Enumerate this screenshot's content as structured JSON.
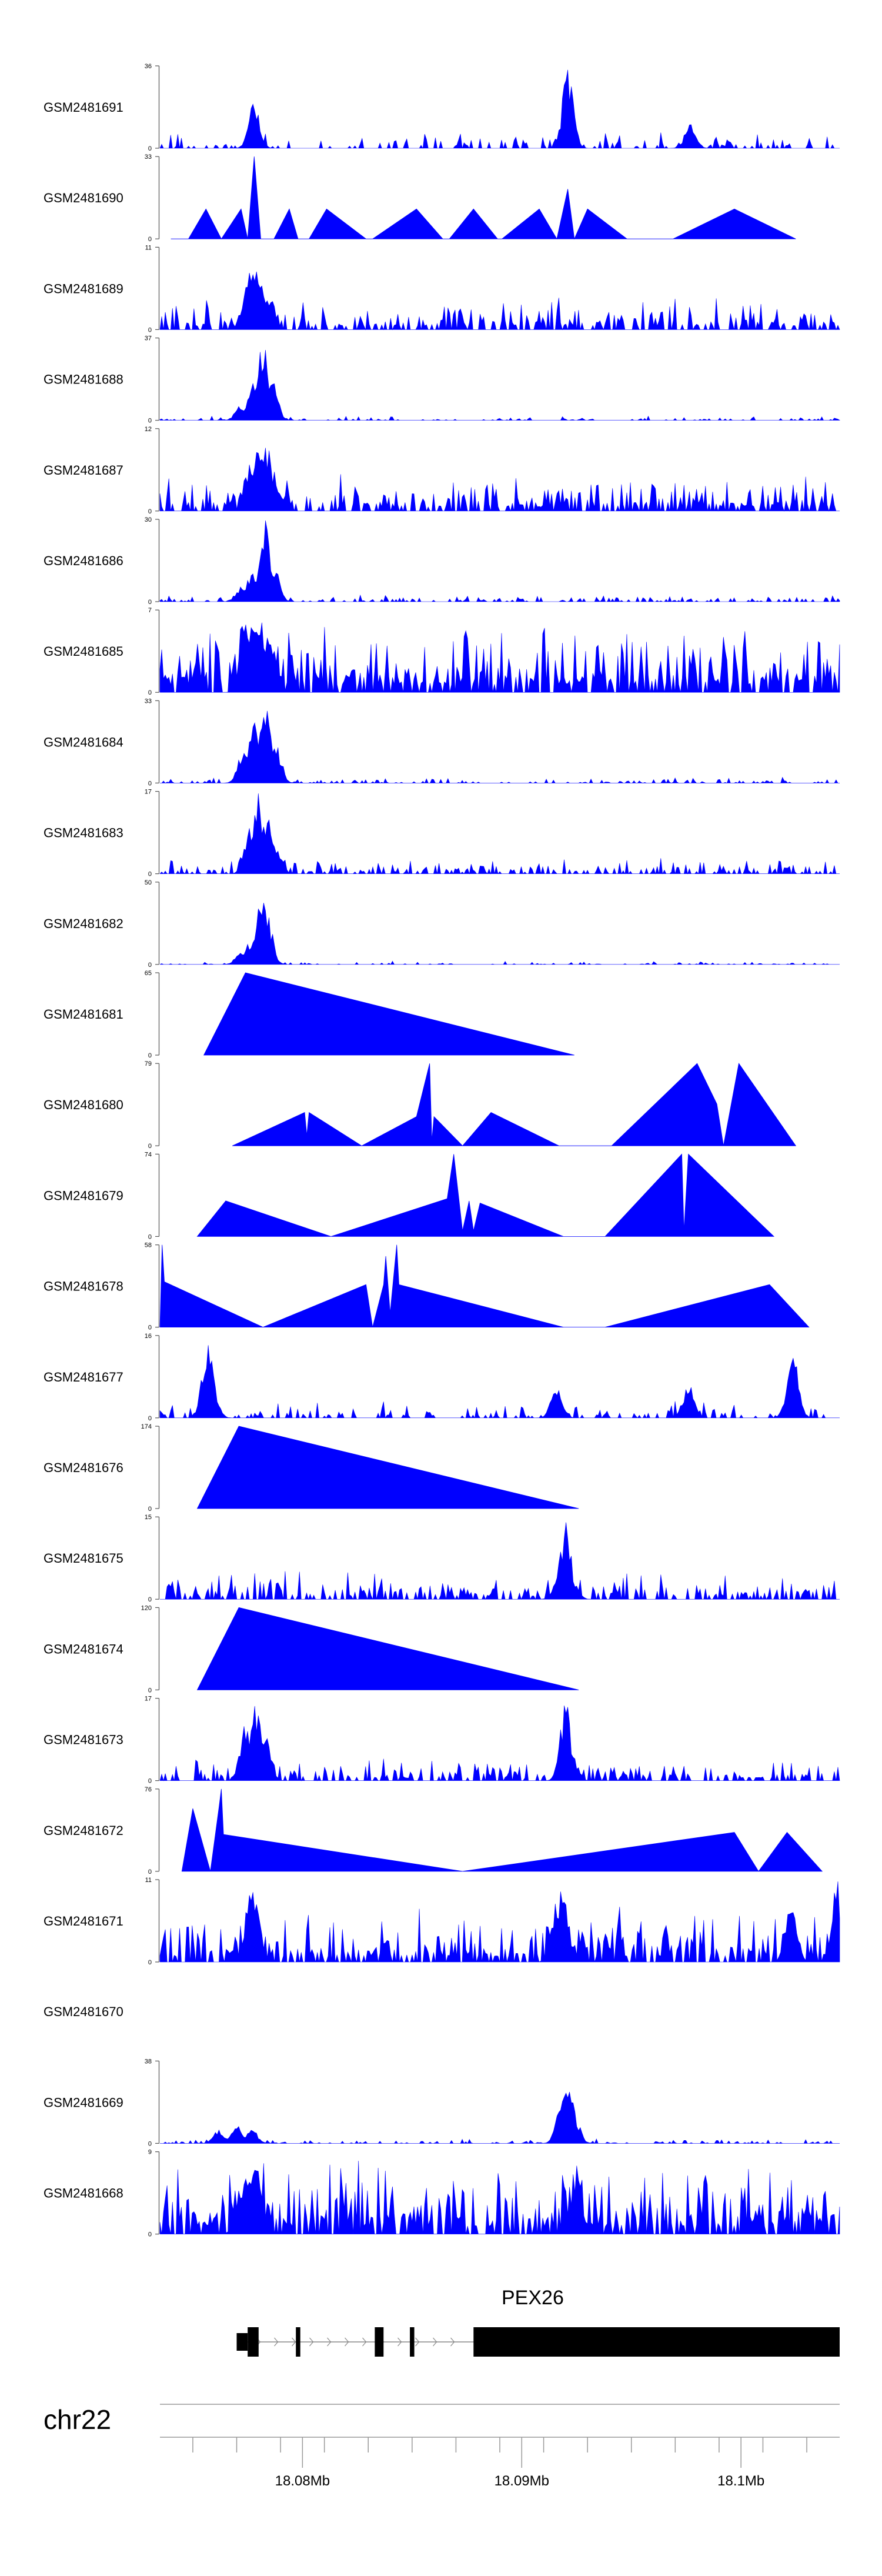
{
  "chart_data": {
    "type": "area",
    "title": "",
    "xlabel": "",
    "ylabel": "",
    "chromosome": "chr22",
    "xlim": [
      18.0735,
      18.1045
    ],
    "x_ticks": [
      18.075,
      18.077,
      18.079,
      18.081,
      18.083,
      18.085,
      18.087,
      18.089,
      18.091,
      18.093,
      18.095,
      18.097,
      18.099,
      18.101,
      18.103
    ],
    "x_tick_labels": [
      {
        "pos": 18.08,
        "label": "18.08Mb"
      },
      {
        "pos": 18.09,
        "label": "18.09Mb"
      },
      {
        "pos": 18.1,
        "label": "18.1Mb"
      }
    ],
    "gene": {
      "name": "PEX26",
      "label_pos": 18.0905,
      "start": 18.077,
      "end": 18.1045,
      "exons": [
        [
          18.077,
          18.0775
        ],
        [
          18.0775,
          18.078
        ],
        [
          18.0797,
          18.0799
        ],
        [
          18.0833,
          18.0837
        ],
        [
          18.0849,
          18.0851
        ],
        [
          18.0878,
          18.1045
        ]
      ]
    },
    "series": [
      {
        "name": "GSM2481691",
        "ymax": 36,
        "kind": "dense",
        "base": 4,
        "density": 0.35,
        "peaks": [
          [
            18.0778,
            22
          ],
          [
            18.0921,
            36
          ],
          [
            18.0977,
            12
          ]
        ]
      },
      {
        "name": "GSM2481690",
        "ymax": 33,
        "kind": "sparse",
        "baseline": 0,
        "points": [
          [
            18.074,
            0
          ],
          [
            18.0748,
            0
          ],
          [
            18.0756,
            12
          ],
          [
            18.0763,
            0
          ],
          [
            18.0772,
            12
          ],
          [
            18.0775,
            0
          ],
          [
            18.0778,
            33
          ],
          [
            18.0781,
            0
          ],
          [
            18.0787,
            0
          ],
          [
            18.0794,
            12
          ],
          [
            18.0798,
            0
          ],
          [
            18.0803,
            0
          ],
          [
            18.0811,
            12
          ],
          [
            18.0829,
            0
          ],
          [
            18.0832,
            0
          ],
          [
            18.0852,
            12
          ],
          [
            18.0864,
            0
          ],
          [
            18.0867,
            0
          ],
          [
            18.0878,
            12
          ],
          [
            18.0889,
            0
          ],
          [
            18.0891,
            0
          ],
          [
            18.0908,
            12
          ],
          [
            18.0916,
            0
          ],
          [
            18.0921,
            20
          ],
          [
            18.0924,
            0
          ],
          [
            18.093,
            12
          ],
          [
            18.0948,
            0
          ],
          [
            18.0969,
            0
          ],
          [
            18.0997,
            12
          ],
          [
            18.1025,
            0
          ]
        ]
      },
      {
        "name": "GSM2481689",
        "ymax": 11,
        "kind": "dense",
        "base": 2.2,
        "density": 0.55,
        "peaks": [
          [
            18.0775,
            8
          ],
          [
            18.0778,
            11
          ],
          [
            18.0782,
            7
          ],
          [
            18.0785,
            5
          ]
        ]
      },
      {
        "name": "GSM2481688",
        "ymax": 37,
        "kind": "dense",
        "base": 1.2,
        "density": 0.3,
        "peaks": [
          [
            18.0777,
            18
          ],
          [
            18.0782,
            37
          ],
          [
            18.0786,
            24
          ],
          [
            18.0772,
            8
          ]
        ]
      },
      {
        "name": "GSM2481687",
        "ymax": 12,
        "kind": "dense",
        "base": 2.8,
        "density": 0.6,
        "peaks": [
          [
            18.0776,
            8
          ],
          [
            18.078,
            12
          ],
          [
            18.0784,
            10
          ],
          [
            18.0787,
            6
          ]
        ]
      },
      {
        "name": "GSM2481686",
        "ymax": 30,
        "kind": "dense",
        "base": 1.5,
        "density": 0.35,
        "peaks": [
          [
            18.0777,
            12
          ],
          [
            18.0783,
            30
          ],
          [
            18.0787,
            14
          ],
          [
            18.0772,
            6
          ]
        ]
      },
      {
        "name": "GSM2481685",
        "ymax": 7,
        "kind": "dense",
        "base": 3.2,
        "density": 0.75,
        "peaks": [
          [
            18.0774,
            6
          ],
          [
            18.0778,
            7
          ],
          [
            18.0782,
            6.5
          ],
          [
            18.0786,
            5
          ]
        ]
      },
      {
        "name": "GSM2481684",
        "ymax": 33,
        "kind": "dense",
        "base": 1.2,
        "density": 0.3,
        "peaks": [
          [
            18.0773,
            14
          ],
          [
            18.0778,
            26
          ],
          [
            18.0783,
            33
          ],
          [
            18.0788,
            16
          ]
        ]
      },
      {
        "name": "GSM2481683",
        "ymax": 17,
        "kind": "dense",
        "base": 1.8,
        "density": 0.45,
        "peaks": [
          [
            18.0776,
            10
          ],
          [
            18.078,
            17
          ],
          [
            18.0784,
            12
          ],
          [
            18.0788,
            6
          ]
        ]
      },
      {
        "name": "GSM2481682",
        "ymax": 50,
        "kind": "dense",
        "base": 1,
        "density": 0.25,
        "peaks": [
          [
            18.0776,
            14
          ],
          [
            18.0781,
            50
          ],
          [
            18.0784,
            30
          ],
          [
            18.0772,
            8
          ]
        ]
      },
      {
        "name": "GSM2481681",
        "ymax": 65,
        "kind": "sparse",
        "baseline": 0,
        "points": [
          [
            18.0755,
            0
          ],
          [
            18.0774,
            65
          ],
          [
            18.0924,
            0
          ]
        ]
      },
      {
        "name": "GSM2481680",
        "ymax": 79,
        "kind": "sparse",
        "baseline": 0,
        "points": [
          [
            18.0768,
            0
          ],
          [
            18.0801,
            32
          ],
          [
            18.0802,
            10
          ],
          [
            18.0803,
            32
          ],
          [
            18.0827,
            0
          ],
          [
            18.0852,
            28
          ],
          [
            18.0858,
            79
          ],
          [
            18.0859,
            5
          ],
          [
            18.086,
            28
          ],
          [
            18.0873,
            0
          ],
          [
            18.0886,
            32
          ],
          [
            18.0917,
            0
          ],
          [
            18.0941,
            0
          ],
          [
            18.098,
            79
          ],
          [
            18.0989,
            40
          ],
          [
            18.0992,
            0
          ],
          [
            18.0999,
            79
          ],
          [
            18.1025,
            0
          ]
        ]
      },
      {
        "name": "GSM2481679",
        "ymax": 74,
        "kind": "sparse",
        "baseline": 0,
        "points": [
          [
            18.0752,
            0
          ],
          [
            18.0765,
            32
          ],
          [
            18.0813,
            0
          ],
          [
            18.0866,
            34
          ],
          [
            18.0869,
            74
          ],
          [
            18.0873,
            5
          ],
          [
            18.0876,
            32
          ],
          [
            18.0878,
            5
          ],
          [
            18.0881,
            30
          ],
          [
            18.0919,
            0
          ],
          [
            18.0938,
            0
          ],
          [
            18.0973,
            74
          ],
          [
            18.0974,
            5
          ],
          [
            18.0976,
            74
          ],
          [
            18.1015,
            0
          ]
        ]
      },
      {
        "name": "GSM2481678",
        "ymax": 58,
        "kind": "sparse",
        "baseline": 0,
        "points": [
          [
            18.0735,
            0
          ],
          [
            18.0736,
            58
          ],
          [
            18.0737,
            32
          ],
          [
            18.0782,
            0
          ],
          [
            18.0829,
            30
          ],
          [
            18.0832,
            0
          ],
          [
            18.0837,
            30
          ],
          [
            18.0838,
            50
          ],
          [
            18.084,
            10
          ],
          [
            18.0843,
            58
          ],
          [
            18.0844,
            30
          ],
          [
            18.0919,
            0
          ],
          [
            18.0938,
            0
          ],
          [
            18.1013,
            30
          ],
          [
            18.1031,
            0
          ]
        ]
      },
      {
        "name": "GSM2481677",
        "ymax": 16,
        "kind": "dense",
        "base": 1.8,
        "density": 0.4,
        "peaks": [
          [
            18.0756,
            11
          ],
          [
            18.0757,
            16
          ],
          [
            18.0759,
            7
          ],
          [
            18.0916,
            7
          ],
          [
            18.0976,
            7
          ],
          [
            18.1023,
            10
          ],
          [
            18.1024,
            13
          ]
        ]
      },
      {
        "name": "GSM2481676",
        "ymax": 174,
        "kind": "sparse",
        "baseline": 0,
        "points": [
          [
            18.0752,
            0
          ],
          [
            18.0771,
            174
          ],
          [
            18.0926,
            0
          ]
        ]
      },
      {
        "name": "GSM2481675",
        "ymax": 15,
        "kind": "dense",
        "base": 2.8,
        "density": 0.5,
        "peaks": [
          [
            18.0917,
            5
          ],
          [
            18.092,
            15
          ],
          [
            18.0923,
            4
          ]
        ]
      },
      {
        "name": "GSM2481674",
        "ymax": 120,
        "kind": "sparse",
        "baseline": 0,
        "points": [
          [
            18.0752,
            0
          ],
          [
            18.0771,
            120
          ],
          [
            18.0926,
            0
          ]
        ]
      },
      {
        "name": "GSM2481673",
        "ymax": 17,
        "kind": "dense",
        "base": 2.6,
        "density": 0.5,
        "peaks": [
          [
            18.0774,
            12
          ],
          [
            18.0779,
            17
          ],
          [
            18.0783,
            10
          ],
          [
            18.092,
            17
          ],
          [
            18.0923,
            6
          ]
        ]
      },
      {
        "name": "GSM2481672",
        "ymax": 76,
        "kind": "sparse",
        "baseline": 0,
        "points": [
          [
            18.0745,
            0
          ],
          [
            18.075,
            58
          ],
          [
            18.0758,
            0
          ],
          [
            18.0762,
            60
          ],
          [
            18.0763,
            76
          ],
          [
            18.0764,
            34
          ],
          [
            18.0873,
            0
          ],
          [
            18.0997,
            36
          ],
          [
            18.1008,
            0
          ],
          [
            18.1021,
            36
          ],
          [
            18.1037,
            0
          ]
        ]
      },
      {
        "name": "GSM2481671",
        "ymax": 11,
        "kind": "dense",
        "base": 3.8,
        "density": 0.62,
        "peaks": [
          [
            18.0776,
            10
          ],
          [
            18.0778,
            11
          ],
          [
            18.0916,
            10
          ],
          [
            18.0919,
            11
          ],
          [
            18.1023,
            11
          ],
          [
            18.1044,
            11
          ]
        ]
      },
      {
        "name": "GSM2481670",
        "ymax": null,
        "kind": "empty"
      },
      {
        "name": "GSM2481669",
        "ymax": 38,
        "kind": "dense",
        "base": 1.2,
        "density": 0.3,
        "peaks": [
          [
            18.0762,
            7
          ],
          [
            18.077,
            9
          ],
          [
            18.0777,
            7
          ],
          [
            18.0918,
            18
          ],
          [
            18.0921,
            38
          ],
          [
            18.0924,
            14
          ]
        ]
      },
      {
        "name": "GSM2481668",
        "ymax": 9,
        "kind": "dense",
        "base": 4.2,
        "density": 0.72,
        "peaks": [
          [
            18.0772,
            7
          ],
          [
            18.0775,
            9
          ],
          [
            18.0779,
            8
          ],
          [
            18.0925,
            8
          ]
        ]
      }
    ]
  }
}
